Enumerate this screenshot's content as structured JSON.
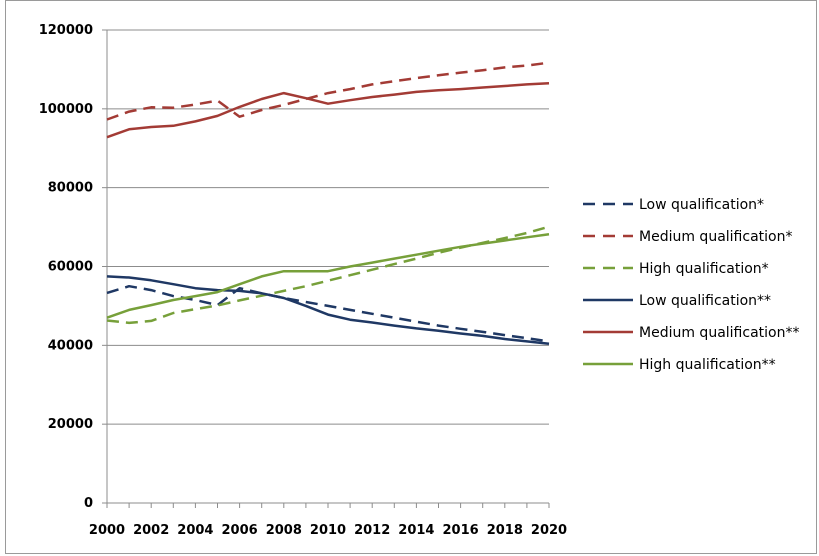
{
  "chart_data": {
    "type": "line",
    "title": "",
    "xlabel": "",
    "ylabel": "",
    "xlim": [
      2000,
      2020
    ],
    "ylim": [
      0,
      120000
    ],
    "x_ticks": [
      "2000",
      "2002",
      "2004",
      "2006",
      "2008",
      "2010",
      "2012",
      "2014",
      "2016",
      "2018",
      "2020"
    ],
    "y_ticks": [
      "0",
      "20000",
      "40000",
      "60000",
      "80000",
      "100000",
      "120000"
    ],
    "grid": "horizontal",
    "legend_position": "right",
    "series": [
      {
        "name": "Low qualification*",
        "color": "#1f3864",
        "dashed": true,
        "x": [
          2000,
          2001,
          2002,
          2003,
          2004,
          2005,
          2006,
          2007,
          2008,
          2009,
          2010,
          2011,
          2012,
          2013,
          2014,
          2015,
          2016,
          2017,
          2018,
          2019,
          2020
        ],
        "values": [
          53300,
          55000,
          54000,
          52500,
          51500,
          50200,
          54500,
          53200,
          52000,
          51000,
          50000,
          49000,
          48000,
          47000,
          46000,
          45000,
          44200,
          43400,
          42600,
          41800,
          41000
        ]
      },
      {
        "name": "Medium qualification*",
        "color": "#a33b35",
        "dashed": true,
        "x": [
          2000,
          2001,
          2002,
          2003,
          2004,
          2005,
          2006,
          2007,
          2008,
          2009,
          2010,
          2011,
          2012,
          2013,
          2014,
          2015,
          2016,
          2017,
          2018,
          2019,
          2020
        ],
        "values": [
          97300,
          99300,
          100400,
          100300,
          101100,
          102100,
          98000,
          99700,
          101000,
          102500,
          104000,
          105000,
          106200,
          107000,
          107800,
          108500,
          109200,
          109800,
          110500,
          111000,
          111700
        ]
      },
      {
        "name": "High qualification*",
        "color": "#77a03a",
        "dashed": true,
        "x": [
          2000,
          2001,
          2002,
          2003,
          2004,
          2005,
          2006,
          2007,
          2008,
          2009,
          2010,
          2011,
          2012,
          2013,
          2014,
          2015,
          2016,
          2017,
          2018,
          2019,
          2020
        ],
        "values": [
          46300,
          45700,
          46200,
          48200,
          49200,
          50100,
          51400,
          52600,
          53800,
          55000,
          56400,
          57800,
          59200,
          60600,
          62000,
          63500,
          64800,
          66000,
          67200,
          68500,
          70100
        ]
      },
      {
        "name": "Low qualification**",
        "color": "#1f3864",
        "dashed": false,
        "x": [
          2000,
          2001,
          2002,
          2003,
          2004,
          2005,
          2006,
          2007,
          2008,
          2009,
          2010,
          2011,
          2012,
          2013,
          2014,
          2015,
          2016,
          2017,
          2018,
          2019,
          2020
        ],
        "values": [
          57500,
          57200,
          56500,
          55500,
          54500,
          54000,
          53800,
          53200,
          52000,
          50000,
          47800,
          46500,
          45800,
          45000,
          44300,
          43700,
          43000,
          42400,
          41600,
          41000,
          40400
        ]
      },
      {
        "name": "Medium qualification**",
        "color": "#a33b35",
        "dashed": false,
        "x": [
          2000,
          2001,
          2002,
          2003,
          2004,
          2005,
          2006,
          2007,
          2008,
          2009,
          2010,
          2011,
          2012,
          2013,
          2014,
          2015,
          2016,
          2017,
          2018,
          2019,
          2020
        ],
        "values": [
          92800,
          94800,
          95400,
          95700,
          96800,
          98200,
          100500,
          102500,
          104000,
          102700,
          101300,
          102200,
          103000,
          103600,
          104300,
          104700,
          105000,
          105400,
          105800,
          106200,
          106500
        ]
      },
      {
        "name": "High qualification**",
        "color": "#77a03a",
        "dashed": false,
        "x": [
          2000,
          2001,
          2002,
          2003,
          2004,
          2005,
          2006,
          2007,
          2008,
          2009,
          2010,
          2011,
          2012,
          2013,
          2014,
          2015,
          2016,
          2017,
          2018,
          2019,
          2020
        ],
        "values": [
          47000,
          49000,
          50200,
          51500,
          52500,
          53500,
          55500,
          57500,
          58800,
          58800,
          58800,
          60000,
          61000,
          62000,
          63000,
          64000,
          65000,
          65800,
          66600,
          67400,
          68200
        ]
      }
    ]
  }
}
